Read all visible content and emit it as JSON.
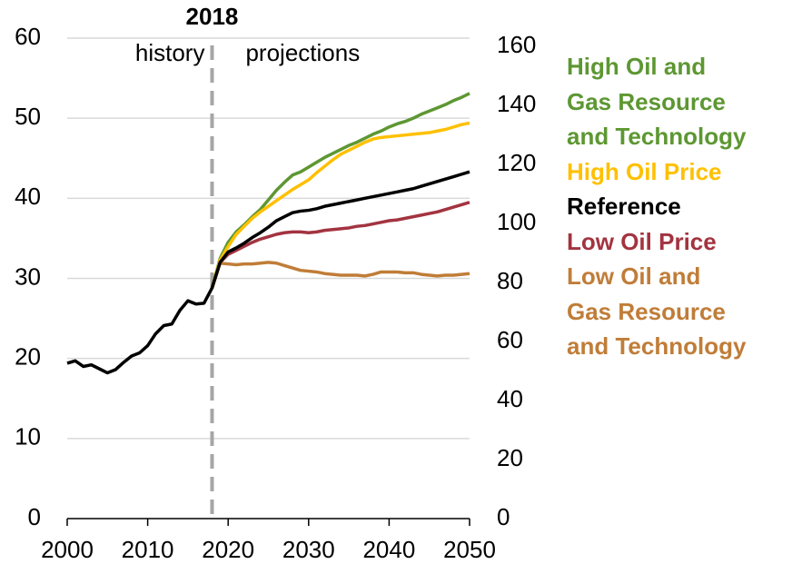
{
  "chart_data": {
    "type": "line",
    "annotations": {
      "divider": 2018,
      "left": "history",
      "right": "projections"
    },
    "x": [
      2000,
      2001,
      2002,
      2003,
      2004,
      2005,
      2006,
      2007,
      2008,
      2009,
      2010,
      2011,
      2012,
      2013,
      2014,
      2015,
      2016,
      2017,
      2018,
      2019,
      2020,
      2021,
      2022,
      2023,
      2024,
      2025,
      2026,
      2027,
      2028,
      2029,
      2030,
      2031,
      2032,
      2033,
      2034,
      2035,
      2036,
      2037,
      2038,
      2039,
      2040,
      2041,
      2042,
      2043,
      2044,
      2045,
      2046,
      2047,
      2048,
      2049,
      2050
    ],
    "xlim": [
      2000,
      2050
    ],
    "xticks": [
      2000,
      2010,
      2020,
      2030,
      2040,
      2050
    ],
    "ylim": [
      0,
      60
    ],
    "yticks": [
      0,
      10,
      20,
      30,
      40,
      50,
      60
    ],
    "y2lim": [
      0,
      162.8
    ],
    "y2ticks": [
      0,
      20,
      40,
      60,
      80,
      100,
      120,
      140,
      160
    ],
    "grid": true,
    "series": [
      {
        "name": "High Oil and\nGas Resource\nand Technology",
        "color": "#5d9732",
        "values": [
          null,
          null,
          null,
          null,
          null,
          null,
          null,
          null,
          null,
          null,
          null,
          null,
          null,
          null,
          null,
          null,
          null,
          null,
          28.8,
          32.5,
          34.5,
          35.8,
          36.7,
          37.7,
          38.6,
          39.8,
          41.0,
          42.0,
          42.9,
          43.3,
          43.9,
          44.5,
          45.1,
          45.6,
          46.1,
          46.6,
          47.0,
          47.5,
          48.0,
          48.4,
          48.9,
          49.3,
          49.6,
          50.0,
          50.5,
          50.9,
          51.3,
          51.7,
          52.2,
          52.6,
          53.1
        ]
      },
      {
        "name": "High Oil Price",
        "color": "#ffc000",
        "values": [
          null,
          null,
          null,
          null,
          null,
          null,
          null,
          null,
          null,
          null,
          null,
          null,
          null,
          null,
          null,
          null,
          null,
          null,
          28.8,
          32.3,
          34.0,
          35.5,
          36.5,
          37.5,
          38.3,
          39.0,
          39.7,
          40.4,
          41.1,
          41.7,
          42.3,
          43.2,
          44.0,
          44.8,
          45.5,
          46.0,
          46.5,
          47.0,
          47.4,
          47.6,
          47.7,
          47.8,
          47.9,
          48.0,
          48.1,
          48.2,
          48.4,
          48.6,
          48.9,
          49.2,
          49.4
        ]
      },
      {
        "name": "Reference",
        "color": "#000000",
        "values": [
          19.4,
          19.7,
          19.0,
          19.2,
          18.7,
          18.2,
          18.6,
          19.5,
          20.3,
          20.7,
          21.6,
          23.1,
          24.1,
          24.3,
          26.0,
          27.2,
          26.8,
          26.9,
          28.8,
          32.0,
          33.3,
          33.8,
          34.4,
          35.1,
          35.7,
          36.4,
          37.2,
          37.7,
          38.2,
          38.4,
          38.5,
          38.7,
          39.0,
          39.2,
          39.4,
          39.6,
          39.8,
          40.0,
          40.2,
          40.4,
          40.6,
          40.8,
          41.0,
          41.2,
          41.5,
          41.8,
          42.1,
          42.4,
          42.7,
          43.0,
          43.3
        ]
      },
      {
        "name": "Low Oil Price",
        "color": "#a33340",
        "values": [
          null,
          null,
          null,
          null,
          null,
          null,
          null,
          null,
          null,
          null,
          null,
          null,
          null,
          null,
          null,
          null,
          null,
          null,
          28.8,
          32.0,
          33.0,
          33.5,
          34.0,
          34.5,
          34.9,
          35.2,
          35.5,
          35.7,
          35.8,
          35.8,
          35.7,
          35.8,
          36.0,
          36.1,
          36.2,
          36.3,
          36.5,
          36.6,
          36.8,
          37.0,
          37.2,
          37.3,
          37.5,
          37.7,
          37.9,
          38.1,
          38.3,
          38.6,
          38.9,
          39.2,
          39.5
        ]
      },
      {
        "name": "Low Oil and\nGas Resource\nand Technology",
        "color": "#c07d38",
        "values": [
          null,
          null,
          null,
          null,
          null,
          null,
          null,
          null,
          null,
          null,
          null,
          null,
          null,
          null,
          null,
          null,
          null,
          null,
          28.8,
          31.9,
          31.8,
          31.7,
          31.8,
          31.8,
          31.9,
          32.0,
          31.9,
          31.6,
          31.3,
          31.0,
          30.9,
          30.8,
          30.6,
          30.5,
          30.4,
          30.4,
          30.4,
          30.3,
          30.5,
          30.8,
          30.8,
          30.8,
          30.7,
          30.7,
          30.5,
          30.4,
          30.3,
          30.4,
          30.4,
          30.5,
          30.6
        ]
      }
    ]
  }
}
